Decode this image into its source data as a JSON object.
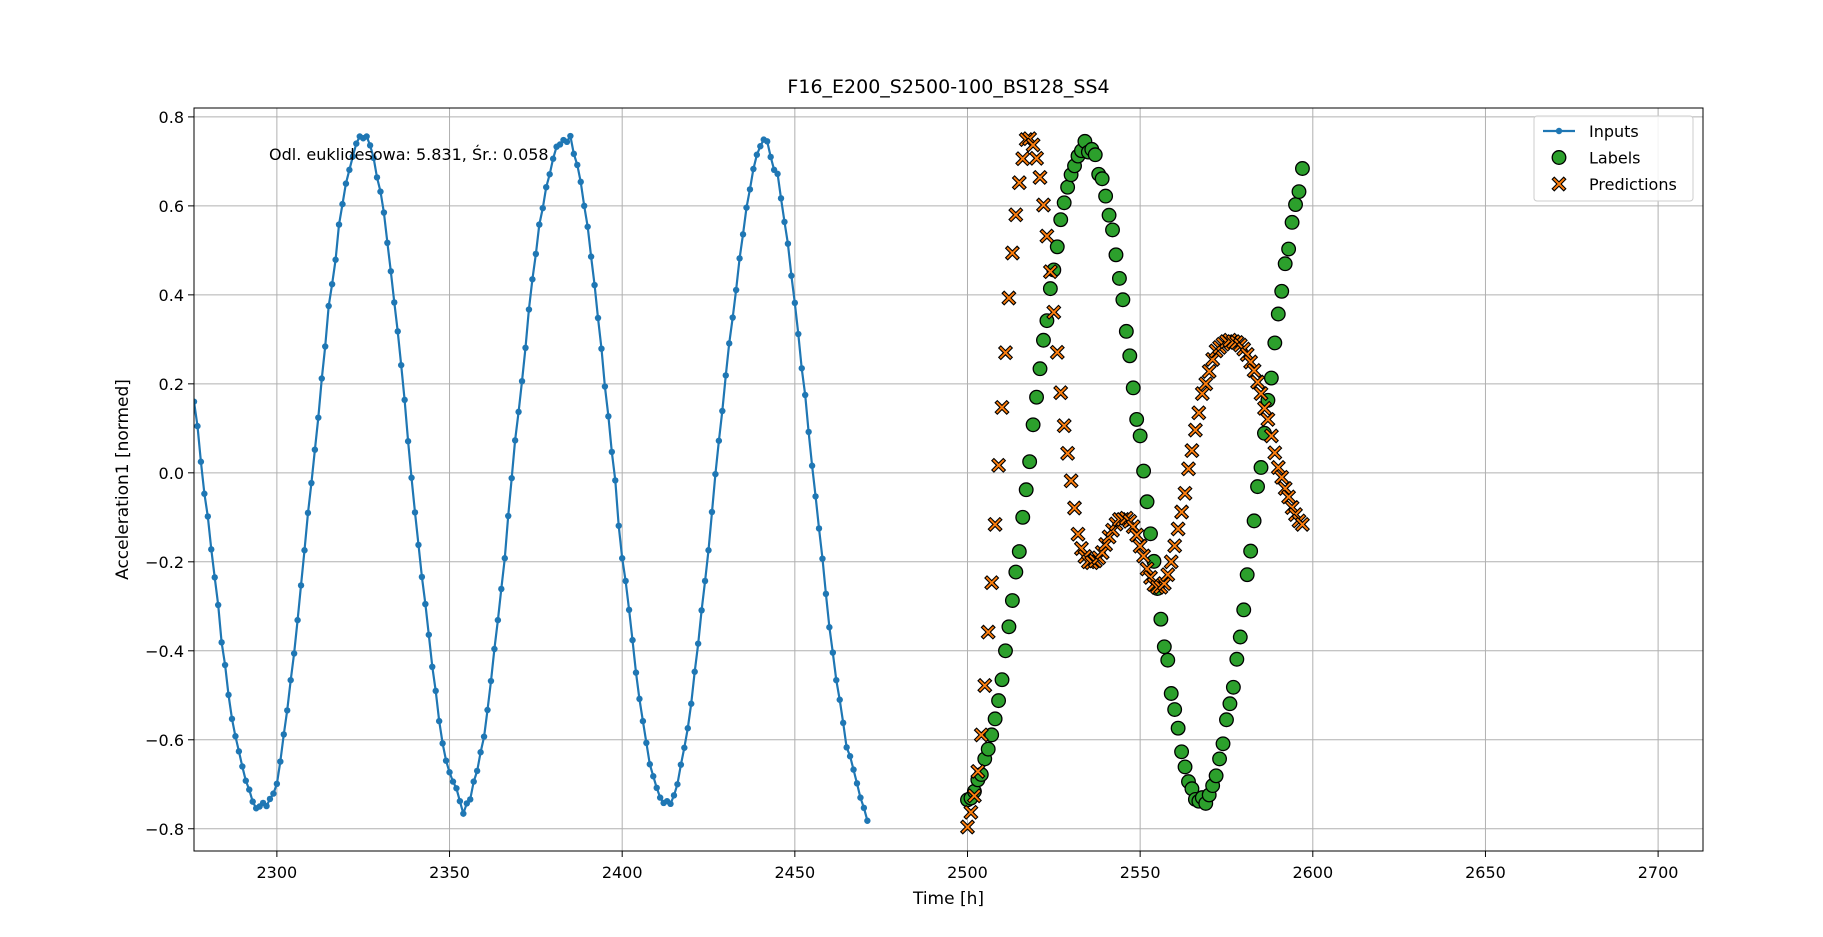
{
  "chart_data": {
    "type": "scatter",
    "title": "F16_E200_S2500-100_BS128_SS4",
    "xlabel": "Time [h]",
    "ylabel": "Acceleration1 [normed]",
    "xlim": [
      2276,
      2713
    ],
    "ylim": [
      -0.85,
      0.82
    ],
    "xticks": [
      2300,
      2350,
      2400,
      2450,
      2500,
      2550,
      2600,
      2650,
      2700
    ],
    "yticks": [
      -0.8,
      -0.6,
      -0.4,
      -0.2,
      0.0,
      0.2,
      0.4,
      0.6,
      0.8
    ],
    "xtick_labels": [
      "2300",
      "2350",
      "2400",
      "2450",
      "2500",
      "2550",
      "2600",
      "2650",
      "2700"
    ],
    "ytick_labels": [
      "−0.8",
      "−0.6",
      "−0.4",
      "−0.2",
      "0.0",
      "0.2",
      "0.4",
      "0.6",
      "0.8"
    ],
    "grid": true,
    "legend_position": "top-right",
    "annotation": "Odl. euklidesowa: 5.831, Śr.: 0.058",
    "series": [
      {
        "name": "Inputs",
        "kind": "line-marker",
        "color": "#1f77b4",
        "x_start": 2276,
        "x_step": 1,
        "values": [
          0.16,
          0.105,
          0.025,
          -0.047,
          -0.098,
          -0.172,
          -0.235,
          -0.297,
          -0.381,
          -0.432,
          -0.499,
          -0.553,
          -0.592,
          -0.626,
          -0.66,
          -0.692,
          -0.712,
          -0.739,
          -0.754,
          -0.75,
          -0.742,
          -0.749,
          -0.733,
          -0.721,
          -0.699,
          -0.649,
          -0.588,
          -0.534,
          -0.466,
          -0.406,
          -0.331,
          -0.253,
          -0.174,
          -0.09,
          -0.023,
          0.052,
          0.124,
          0.212,
          0.284,
          0.375,
          0.424,
          0.479,
          0.558,
          0.604,
          0.65,
          0.681,
          0.711,
          0.74,
          0.756,
          0.752,
          0.756,
          0.736,
          0.708,
          0.664,
          0.632,
          0.585,
          0.517,
          0.453,
          0.383,
          0.318,
          0.242,
          0.164,
          0.071,
          -0.011,
          -0.089,
          -0.162,
          -0.234,
          -0.295,
          -0.364,
          -0.436,
          -0.49,
          -0.558,
          -0.608,
          -0.647,
          -0.673,
          -0.694,
          -0.709,
          -0.738,
          -0.766,
          -0.743,
          -0.734,
          -0.694,
          -0.67,
          -0.628,
          -0.593,
          -0.533,
          -0.468,
          -0.396,
          -0.331,
          -0.261,
          -0.192,
          -0.097,
          -0.012,
          0.073,
          0.137,
          0.206,
          0.281,
          0.367,
          0.435,
          0.492,
          0.558,
          0.595,
          0.642,
          0.671,
          0.706,
          0.733,
          0.738,
          0.748,
          0.744,
          0.757,
          0.717,
          0.692,
          0.654,
          0.6,
          0.553,
          0.486,
          0.422,
          0.348,
          0.279,
          0.194,
          0.127,
          0.047,
          -0.017,
          -0.119,
          -0.192,
          -0.243,
          -0.308,
          -0.376,
          -0.449,
          -0.508,
          -0.558,
          -0.607,
          -0.655,
          -0.682,
          -0.708,
          -0.73,
          -0.742,
          -0.738,
          -0.744,
          -0.725,
          -0.7,
          -0.656,
          -0.618,
          -0.574,
          -0.519,
          -0.447,
          -0.384,
          -0.309,
          -0.243,
          -0.174,
          -0.088,
          -0.003,
          0.072,
          0.139,
          0.219,
          0.291,
          0.349,
          0.411,
          0.482,
          0.536,
          0.596,
          0.637,
          0.683,
          0.715,
          0.734,
          0.749,
          0.745,
          0.71,
          0.681,
          0.672,
          0.617,
          0.564,
          0.515,
          0.443,
          0.382,
          0.312,
          0.235,
          0.175,
          0.092,
          0.016,
          -0.053,
          -0.125,
          -0.193,
          -0.272,
          -0.347,
          -0.404,
          -0.466,
          -0.51,
          -0.562,
          -0.617,
          -0.637,
          -0.667,
          -0.698,
          -0.73,
          -0.753,
          -0.782
        ]
      },
      {
        "name": "Labels",
        "kind": "scatter-circle",
        "color": "#2ca02c",
        "x_start": 2500,
        "x_step": 1,
        "values": [
          -0.735,
          -0.731,
          -0.716,
          -0.69,
          -0.678,
          -0.643,
          -0.621,
          -0.589,
          -0.553,
          -0.512,
          -0.465,
          -0.4,
          -0.346,
          -0.287,
          -0.223,
          -0.177,
          -0.1,
          -0.038,
          0.025,
          0.108,
          0.17,
          0.234,
          0.298,
          0.342,
          0.414,
          0.456,
          0.508,
          0.569,
          0.607,
          0.642,
          0.67,
          0.69,
          0.712,
          0.724,
          0.745,
          0.721,
          0.727,
          0.715,
          0.671,
          0.661,
          0.622,
          0.579,
          0.546,
          0.49,
          0.437,
          0.389,
          0.318,
          0.263,
          0.191,
          0.12,
          0.083,
          0.004,
          -0.065,
          -0.137,
          -0.199,
          -0.26,
          -0.329,
          -0.391,
          -0.421,
          -0.496,
          -0.532,
          -0.574,
          -0.627,
          -0.661,
          -0.694,
          -0.71,
          -0.734,
          -0.738,
          -0.73,
          -0.743,
          -0.724,
          -0.703,
          -0.681,
          -0.643,
          -0.609,
          -0.555,
          -0.519,
          -0.482,
          -0.419,
          -0.369,
          -0.308,
          -0.229,
          -0.176,
          -0.108,
          -0.031,
          0.012,
          0.089,
          0.163,
          0.213,
          0.292,
          0.357,
          0.408,
          0.47,
          0.503,
          0.563,
          0.603,
          0.632,
          0.684
        ]
      },
      {
        "name": "Predictions",
        "kind": "scatter-x",
        "color": "#ff7f0e",
        "x_start": 2500,
        "x_step": 1,
        "values": [
          -0.796,
          -0.763,
          -0.726,
          -0.671,
          -0.589,
          -0.478,
          -0.358,
          -0.247,
          -0.116,
          0.017,
          0.147,
          0.27,
          0.393,
          0.494,
          0.58,
          0.652,
          0.706,
          0.749,
          0.751,
          0.737,
          0.707,
          0.664,
          0.602,
          0.532,
          0.452,
          0.361,
          0.271,
          0.18,
          0.106,
          0.044,
          -0.018,
          -0.079,
          -0.138,
          -0.17,
          -0.188,
          -0.2,
          -0.202,
          -0.198,
          -0.191,
          -0.179,
          -0.161,
          -0.144,
          -0.129,
          -0.115,
          -0.105,
          -0.105,
          -0.102,
          -0.109,
          -0.121,
          -0.14,
          -0.165,
          -0.187,
          -0.216,
          -0.235,
          -0.251,
          -0.257,
          -0.257,
          -0.249,
          -0.229,
          -0.2,
          -0.164,
          -0.126,
          -0.088,
          -0.046,
          0.009,
          0.05,
          0.096,
          0.135,
          0.178,
          0.2,
          0.228,
          0.255,
          0.274,
          0.282,
          0.289,
          0.295,
          0.298,
          0.295,
          0.293,
          0.287,
          0.278,
          0.266,
          0.249,
          0.23,
          0.204,
          0.178,
          0.145,
          0.12,
          0.083,
          0.045,
          0.012,
          -0.01,
          -0.035,
          -0.054,
          -0.078,
          -0.094,
          -0.108,
          -0.116
        ]
      }
    ]
  }
}
